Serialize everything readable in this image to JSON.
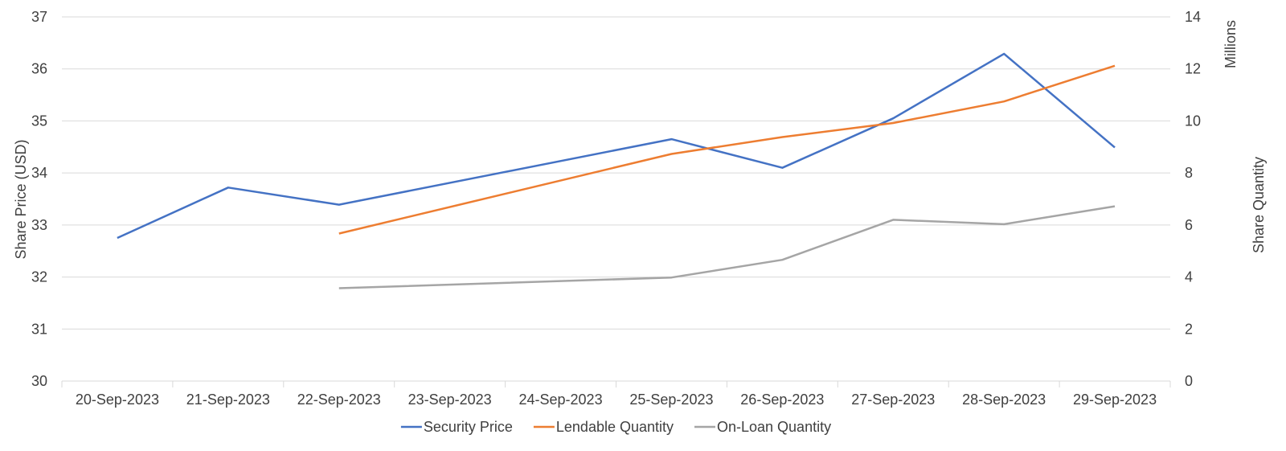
{
  "chart_data": {
    "type": "line",
    "categories": [
      "20-Sep-2023",
      "21-Sep-2023",
      "22-Sep-2023",
      "23-Sep-2023",
      "24-Sep-2023",
      "25-Sep-2023",
      "26-Sep-2023",
      "27-Sep-2023",
      "28-Sep-2023",
      "29-Sep-2023"
    ],
    "ylabel_left": "Share Price (USD)",
    "ylabel_right": "Share Quantity",
    "right_unit_label": "Millions",
    "ylim_left": [
      30,
      37
    ],
    "ylim_right": [
      0,
      14
    ],
    "yticks_left": [
      "30",
      "31",
      "32",
      "33",
      "34",
      "35",
      "36",
      "37"
    ],
    "yticks_right": [
      "0",
      "2",
      "4",
      "6",
      "8",
      "10",
      "12",
      "14"
    ],
    "grid": true,
    "legend_position": "bottom",
    "series": [
      {
        "name": "Security Price",
        "axis": "left",
        "color": "#4472c4",
        "points": [
          [
            0,
            32.75
          ],
          [
            1,
            33.72
          ],
          [
            2,
            33.39
          ],
          [
            5,
            34.65
          ],
          [
            6,
            34.1
          ],
          [
            7,
            35.05
          ],
          [
            8,
            36.29
          ],
          [
            9,
            34.49
          ]
        ]
      },
      {
        "name": "Lendable Quantity",
        "axis": "right",
        "color": "#ed7d31",
        "points": [
          [
            2,
            5.67
          ],
          [
            5,
            8.73
          ],
          [
            6,
            9.38
          ],
          [
            7,
            9.92
          ],
          [
            8,
            10.75
          ],
          [
            9,
            12.12
          ]
        ]
      },
      {
        "name": "On-Loan Quantity",
        "axis": "right",
        "color": "#a5a5a5",
        "points": [
          [
            2,
            3.57
          ],
          [
            5,
            3.98
          ],
          [
            6,
            4.66
          ],
          [
            7,
            6.2
          ],
          [
            8,
            6.03
          ],
          [
            9,
            6.72
          ]
        ]
      }
    ]
  }
}
